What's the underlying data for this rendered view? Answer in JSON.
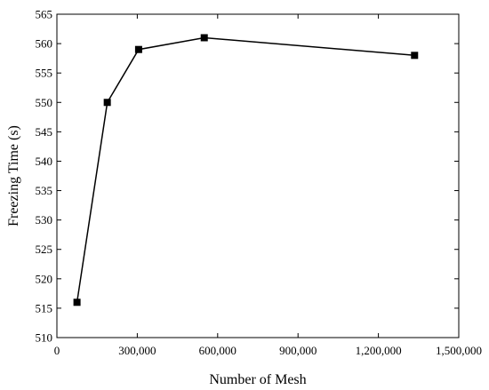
{
  "chart_data": {
    "type": "line",
    "title": "",
    "xlabel": "Number of Mesh",
    "ylabel": "Freezing Time (s)",
    "xlim": [
      0,
      1500000
    ],
    "ylim": [
      510,
      565
    ],
    "x_ticks": [
      0,
      300000,
      600000,
      900000,
      1200000,
      1500000
    ],
    "x_tick_labels": [
      "0",
      "300,000",
      "600,000",
      "900,000",
      "1,200,000",
      "1,500,000"
    ],
    "y_ticks": [
      510,
      515,
      520,
      525,
      530,
      535,
      540,
      545,
      550,
      555,
      560,
      565
    ],
    "y_tick_labels": [
      "510",
      "515",
      "520",
      "525",
      "530",
      "535",
      "540",
      "545",
      "550",
      "555",
      "560",
      "565"
    ],
    "grid": false,
    "marker": "square",
    "line_color": "#000000",
    "marker_color": "#000000",
    "series": [
      {
        "x": [
          75000,
          188000,
          305000,
          550000,
          1335000
        ],
        "y": [
          516,
          550,
          559,
          561,
          558
        ]
      }
    ]
  }
}
